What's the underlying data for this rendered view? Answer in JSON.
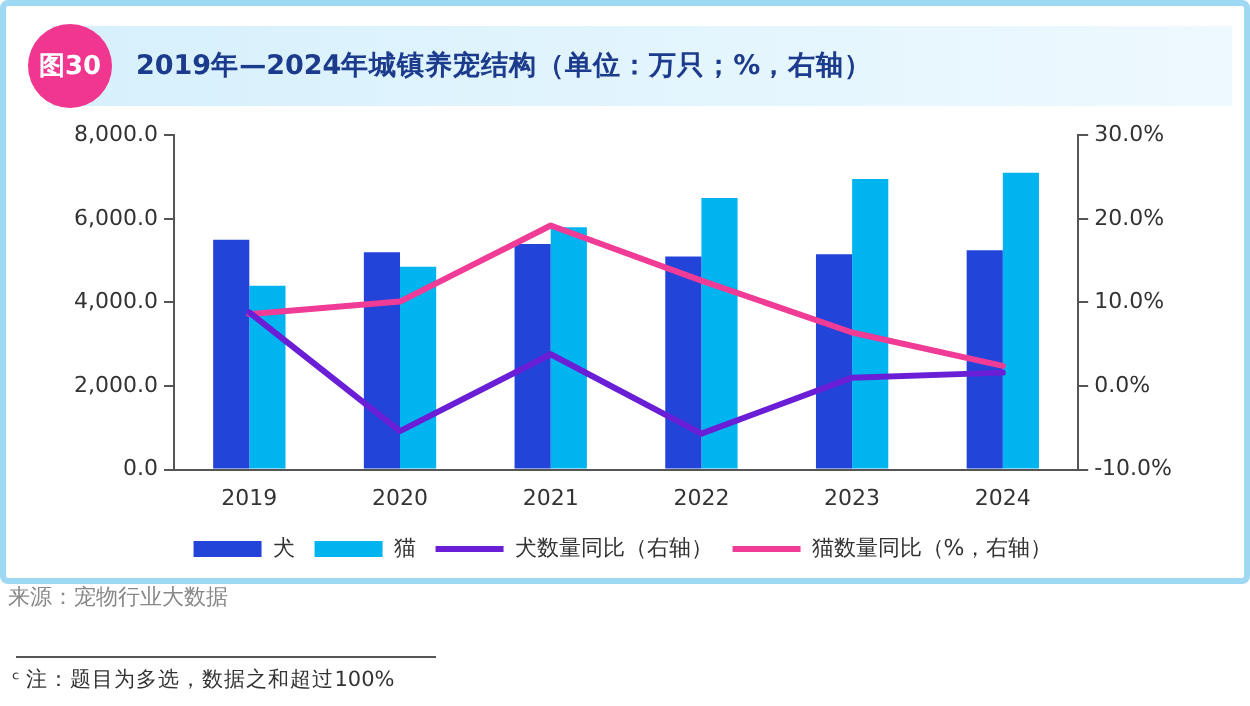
{
  "chart_data": {
    "type": "bar",
    "title": "2019年—2024年城镇养宠结构（单位：万只；%，右轴）",
    "categories": [
      "2019",
      "2020",
      "2021",
      "2022",
      "2023",
      "2024"
    ],
    "series": [
      {
        "name": "犬",
        "color": "#2344d8",
        "values": [
          5500,
          5200,
          5400,
          5100,
          5150,
          5250
        ]
      },
      {
        "name": "猫",
        "color": "#00b4ef",
        "values": [
          4400,
          4850,
          5800,
          6500,
          6950,
          7100
        ]
      },
      {
        "name": "犬数量同比（右轴）",
        "type": "line",
        "axis": "y2",
        "color": "#6a1fd6",
        "values": [
          8.8,
          -5.4,
          3.8,
          -5.7,
          1.0,
          1.6
        ]
      },
      {
        "name": "猫数量同比（%，右轴）",
        "type": "line",
        "axis": "y2",
        "color": "#f03c96",
        "values": [
          8.6,
          10.1,
          19.2,
          12.6,
          6.4,
          2.4
        ]
      }
    ],
    "ylim": [
      0,
      8000
    ],
    "yticks": [
      {
        "value": 0,
        "label": "0.0"
      },
      {
        "value": 2000,
        "label": "2,000.0"
      },
      {
        "value": 4000,
        "label": "4,000.0"
      },
      {
        "value": 6000,
        "label": "6,000.0"
      },
      {
        "value": 8000,
        "label": "8,000.0"
      }
    ],
    "y2lim": [
      -10,
      30
    ],
    "y2ticks": [
      {
        "value": -10,
        "label": "-10.0%"
      },
      {
        "value": 0,
        "label": "0.0%"
      },
      {
        "value": 10,
        "label": "10.0%"
      },
      {
        "value": 20,
        "label": "20.0%"
      },
      {
        "value": 30,
        "label": "30.0%"
      }
    ],
    "grid": false,
    "legend": "bottom",
    "marker": "none",
    "line_style": "solid",
    "annotations": [
      "图30",
      "来源：宠物行业大数据",
      "ᶜ 注：题目为多选，数据之和超过100%"
    ]
  }
}
